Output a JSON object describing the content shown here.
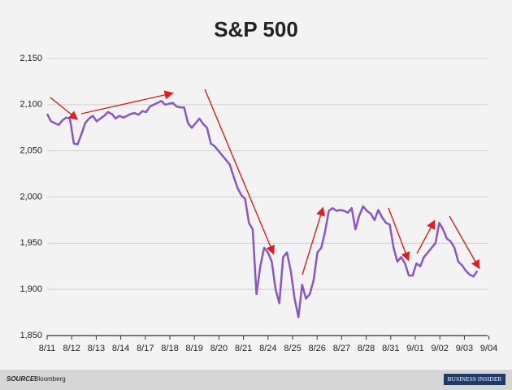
{
  "chart_data": {
    "type": "line",
    "title": "S&P 500",
    "categories": [
      "8/11",
      "8/12",
      "8/13",
      "8/14",
      "8/17",
      "8/18",
      "8/19",
      "8/20",
      "8/21",
      "8/24",
      "8/25",
      "8/26",
      "8/27",
      "8/28",
      "8/31",
      "9/01",
      "9/02",
      "9/03",
      "9/04"
    ],
    "values": [
      [
        2090,
        2082,
        2080,
        2078,
        2083,
        2086
      ],
      [
        2085,
        2058,
        2057,
        2068,
        2080,
        2085
      ],
      [
        2088,
        2082,
        2085,
        2088,
        2092,
        2090
      ],
      [
        2085,
        2088,
        2086,
        2088,
        2090,
        2091
      ],
      [
        2089,
        2093,
        2092,
        2098,
        2100,
        2102
      ],
      [
        2104,
        2100,
        2101,
        2102,
        2098,
        2097
      ],
      [
        2097,
        2080,
        2075,
        2080,
        2085,
        2079
      ],
      [
        2075,
        2058,
        2055,
        2050,
        2045,
        2040
      ],
      [
        2035,
        2022,
        2010,
        2002,
        1998,
        1972
      ],
      [
        1965,
        1895,
        1925,
        1945,
        1940,
        1930
      ],
      [
        1900,
        1885,
        1935,
        1940,
        1920,
        1890
      ],
      [
        1870,
        1905,
        1890,
        1895,
        1910,
        1940
      ],
      [
        1945,
        1962,
        1985,
        1988,
        1985,
        1986
      ],
      [
        1985,
        1983,
        1988,
        1965,
        1980,
        1990
      ],
      [
        1985,
        1982,
        1975,
        1986,
        1978,
        1972
      ],
      [
        1970,
        1945,
        1930,
        1935,
        1928,
        1915
      ],
      [
        1915,
        1928,
        1925,
        1935,
        1940,
        1945
      ],
      [
        1950,
        1972,
        1965,
        1955,
        1952,
        1945
      ],
      [
        1930,
        1926,
        1920,
        1916,
        1914,
        1920
      ]
    ],
    "color": "#8a55c8",
    "ylim": [
      1850,
      2150
    ],
    "yticks": [
      {
        "value": 1850,
        "label": "1,850"
      },
      {
        "value": 1900,
        "label": "1,900"
      },
      {
        "value": 1950,
        "label": "1,950"
      },
      {
        "value": 2000,
        "label": "2,000"
      },
      {
        "value": 2050,
        "label": "2,050"
      },
      {
        "value": 2100,
        "label": "2,100"
      },
      {
        "value": 2150,
        "label": "2,150"
      }
    ],
    "grid": true,
    "source_label": "SOURCE:",
    "source": "Bloomberg",
    "logo": "BUSINESS INSIDER"
  }
}
